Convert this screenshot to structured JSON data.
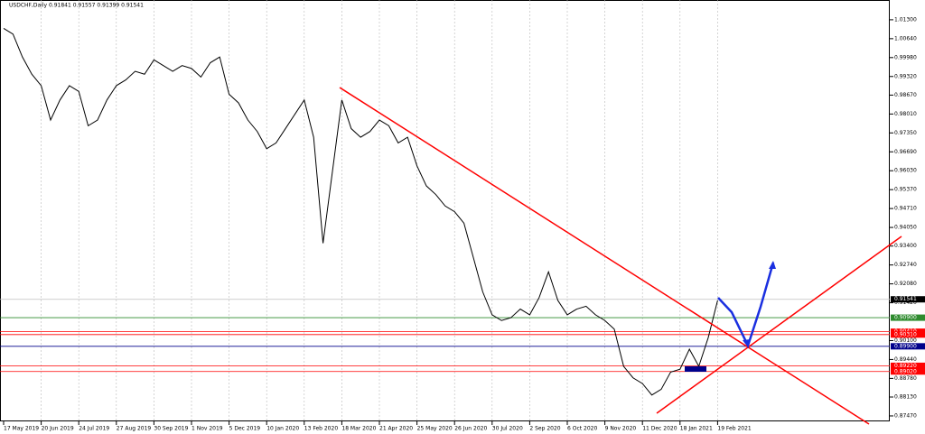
{
  "chart_data": {
    "type": "line",
    "title": "USDCHF,Daily  0.91841 0.91557 0.91399 0.91541",
    "categories": [
      "17 May 2019",
      null,
      null,
      null,
      "20 Jun 2019",
      null,
      null,
      null,
      "24 Jul 2019",
      null,
      null,
      null,
      "27 Aug 2019",
      null,
      null,
      null,
      "30 Sep 2019",
      null,
      null,
      null,
      "1 Nov 2019",
      null,
      null,
      null,
      "5 Dec 2019",
      null,
      null,
      null,
      "10 Jan 2020",
      null,
      null,
      null,
      "13 Feb 2020",
      null,
      null,
      null,
      "18 Mar 2020",
      null,
      null,
      null,
      "21 Apr 2020",
      null,
      null,
      null,
      "25 May 2020",
      null,
      null,
      null,
      "26 Jun 2020",
      null,
      null,
      null,
      "30 Jul 2020",
      null,
      null,
      null,
      "2 Sep 2020",
      null,
      null,
      null,
      "6 Oct 2020",
      null,
      null,
      null,
      "9 Nov 2020",
      null,
      null,
      null,
      "11 Dec 2020",
      null,
      null,
      null,
      "18 Jan 2021",
      null,
      null,
      null,
      "19 Feb 2021"
    ],
    "series": [
      {
        "color": "#000000",
        "values": [
          1.01,
          1.008,
          1.0,
          0.994,
          0.99,
          0.978,
          0.985,
          0.99,
          0.988,
          0.976,
          0.978,
          0.985,
          0.99,
          0.992,
          0.995,
          0.994,
          0.999,
          0.997,
          0.995,
          0.997,
          0.996,
          0.993,
          0.998,
          1.0,
          0.987,
          0.984,
          0.978,
          0.974,
          0.968,
          0.97,
          0.975,
          0.98,
          0.985,
          0.972,
          0.935,
          0.96,
          0.985,
          0.975,
          0.972,
          0.974,
          0.978,
          0.976,
          0.97,
          0.972,
          0.962,
          0.955,
          0.952,
          0.948,
          0.946,
          0.942,
          0.93,
          0.918,
          0.91,
          0.908,
          0.909,
          0.912,
          0.91,
          0.916,
          0.925,
          0.915,
          0.91,
          0.912,
          0.913,
          0.91,
          0.908,
          0.905,
          0.892,
          0.888,
          0.886,
          0.882,
          0.884,
          0.89,
          0.891,
          0.898,
          0.892,
          0.902,
          0.915
        ]
      }
    ],
    "ylim": [
      0.8728,
      1.0199
    ],
    "yticks": [
      {
        "value": 1.013,
        "label": "1.01300"
      },
      {
        "value": 1.0064,
        "label": "1.00640"
      },
      {
        "value": 0.9998,
        "label": "0.99980"
      },
      {
        "value": 0.9932,
        "label": "0.99320"
      },
      {
        "value": 0.9867,
        "label": "0.98670"
      },
      {
        "value": 0.9801,
        "label": "0.98010"
      },
      {
        "value": 0.9735,
        "label": "0.97350"
      },
      {
        "value": 0.9669,
        "label": "0.96690"
      },
      {
        "value": 0.9603,
        "label": "0.96030"
      },
      {
        "value": 0.9537,
        "label": "0.95370"
      },
      {
        "value": 0.9471,
        "label": "0.94710"
      },
      {
        "value": 0.9405,
        "label": "0.94050"
      },
      {
        "value": 0.934,
        "label": "0.93400"
      },
      {
        "value": 0.9274,
        "label": "0.92740"
      },
      {
        "value": 0.9208,
        "label": "0.92080"
      },
      {
        "value": 0.9142,
        "label": "0.91420"
      },
      {
        "value": 0.901,
        "label": "0.90100"
      },
      {
        "value": 0.8944,
        "label": "0.89440"
      },
      {
        "value": 0.8878,
        "label": "0.88780"
      },
      {
        "value": 0.8813,
        "label": "0.88130"
      },
      {
        "value": 0.8747,
        "label": "0.87470"
      }
    ],
    "levels": [
      {
        "value": 0.91541,
        "label": "0.91541",
        "color": "#000000"
      },
      {
        "value": 0.909,
        "label": "0.90900",
        "color": "#2e8b2e"
      },
      {
        "value": 0.9041,
        "label": "0.90410",
        "color": "#ff0000"
      },
      {
        "value": 0.9031,
        "label": "0.90310",
        "color": "#ff0000"
      },
      {
        "value": 0.899,
        "label": "0.89900",
        "color": "#00008b"
      },
      {
        "value": 0.8922,
        "label": "0.89220",
        "color": "#ff0000"
      },
      {
        "value": 0.8902,
        "label": "0.89020",
        "color": "#ff0000"
      }
    ],
    "grid": true
  }
}
